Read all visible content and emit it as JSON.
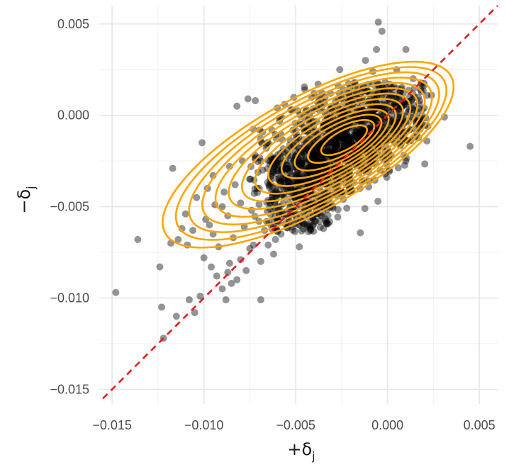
{
  "chart_data": {
    "type": "scatter",
    "title": "",
    "xlabel": "+δ",
    "xlabel_sub": "j",
    "ylabel": "−δ",
    "ylabel_sub": "j",
    "xlim": [
      -0.0157,
      0.006
    ],
    "ylim": [
      -0.0158,
      0.006
    ],
    "x_ticks": [
      -0.015,
      -0.01,
      -0.005,
      0.0,
      0.005
    ],
    "y_ticks": [
      0.005,
      0.0,
      -0.005,
      -0.01,
      -0.015
    ],
    "x_tick_labels": [
      "−0.015",
      "−0.010",
      "−0.005",
      "0.000",
      "0.005"
    ],
    "y_tick_labels": [
      "0.005",
      "0.000",
      "−0.005",
      "−0.010",
      "−0.015"
    ],
    "grid": true,
    "point_color": "#000000",
    "point_opacity": 0.42,
    "contour_color": "#FFA500",
    "reference_line": {
      "style": "dashed",
      "color": "#E41A1C",
      "slope": 1,
      "intercept": 0
    },
    "density_center": [
      -0.0022,
      -0.0013
    ],
    "contour_levels": 13,
    "points": [
      [
        -0.0148,
        -0.0097
      ],
      [
        -0.0136,
        -0.0068
      ],
      [
        -0.0123,
        -0.0105
      ],
      [
        -0.0122,
        -0.0122
      ],
      [
        -0.0115,
        -0.011
      ],
      [
        -0.0117,
        -0.0029
      ],
      [
        -0.0124,
        -0.0083
      ],
      [
        -0.0118,
        -0.007
      ],
      [
        -0.0112,
        -0.0062
      ],
      [
        -0.0105,
        -0.0108
      ],
      [
        -0.0108,
        -0.0101
      ],
      [
        -0.0102,
        -0.0099
      ],
      [
        -0.01,
        -0.0078
      ],
      [
        -0.011,
        -0.0054
      ],
      [
        -0.0104,
        -0.0045
      ],
      [
        -0.0098,
        -0.004
      ],
      [
        -0.0101,
        -0.0015
      ],
      [
        -0.0095,
        -0.0033
      ],
      [
        -0.0093,
        -0.0088
      ],
      [
        -0.009,
        -0.0095
      ],
      [
        -0.0088,
        -0.0101
      ],
      [
        -0.0085,
        -0.0092
      ],
      [
        -0.0082,
        -0.009
      ],
      [
        -0.0086,
        -0.0081
      ],
      [
        -0.0069,
        -0.0101
      ],
      [
        -0.008,
        -0.0048
      ],
      [
        -0.0087,
        -0.0055
      ],
      [
        -0.0082,
        0.0005
      ],
      [
        -0.0076,
        0.0009
      ],
      [
        -0.0072,
        0.0008
      ],
      [
        -0.0079,
        -0.0025
      ],
      [
        -0.0075,
        -0.0073
      ],
      [
        -0.0062,
        -0.0076
      ],
      [
        -0.0058,
        -0.0065
      ],
      [
        -0.005,
        -0.0058
      ],
      [
        -0.0045,
        0.0014
      ],
      [
        -0.004,
        0.0012
      ],
      [
        -0.0034,
        0.001
      ],
      [
        -0.0026,
        0.0025
      ],
      [
        -0.0005,
        0.0051
      ],
      [
        -0.0003,
        0.0046
      ],
      [
        -0.0006,
        0.0036
      ],
      [
        0.001,
        0.0036
      ],
      [
        0.0014,
        0.002
      ],
      [
        0.0018,
        0.0014
      ],
      [
        0.0024,
        0.0011
      ],
      [
        0.0031,
        -0.0001
      ],
      [
        0.0045,
        -0.0017
      ],
      [
        0.0022,
        -0.0006
      ],
      [
        0.0015,
        -0.0012
      ],
      [
        0.001,
        -0.0025
      ],
      [
        -0.0012,
        0.003
      ],
      [
        -0.0018,
        0.0018
      ],
      [
        -0.0008,
        0.0024
      ],
      [
        0.0005,
        0.0025
      ],
      [
        -0.0095,
        -0.0065
      ],
      [
        -0.009,
        -0.005
      ],
      [
        -0.0097,
        -0.006
      ],
      [
        -0.0092,
        -0.0072
      ],
      [
        -0.0084,
        -0.0067
      ],
      [
        -0.0078,
        -0.0061
      ],
      [
        -0.0074,
        -0.0052
      ],
      [
        -0.0071,
        -0.004
      ],
      [
        -0.0068,
        -0.003
      ],
      [
        -0.0066,
        -0.0018
      ],
      [
        -0.0063,
        -0.0008
      ],
      [
        -0.006,
        0.0004
      ],
      [
        -0.0056,
        0.0006
      ],
      [
        -0.0052,
        0.0003
      ],
      [
        -0.0048,
        -0.0072
      ],
      [
        -0.0042,
        -0.0062
      ],
      [
        -0.0036,
        -0.0055
      ],
      [
        -0.003,
        -0.005
      ],
      [
        -0.0024,
        -0.0046
      ],
      [
        -0.002,
        -0.0042
      ],
      [
        -0.0015,
        -0.004
      ],
      [
        -0.001,
        -0.0036
      ],
      [
        -0.0004,
        -0.003
      ],
      [
        0.0002,
        -0.0022
      ],
      [
        0.0008,
        -0.0015
      ],
      [
        0.0012,
        -0.0008
      ],
      [
        0.0016,
        -0.0003
      ],
      [
        0.002,
        0.0004
      ],
      [
        0.0012,
        0.001
      ],
      [
        0.0007,
        0.0013
      ],
      [
        -0.0001,
        0.0016
      ],
      [
        -0.0008,
        0.0017
      ],
      [
        -0.0016,
        0.0015
      ],
      [
        -0.0024,
        0.0014
      ],
      [
        -0.0031,
        0.0012
      ],
      [
        -0.0038,
        0.0007
      ],
      [
        -0.0044,
        0.0003
      ],
      [
        -0.007,
        -0.0058
      ],
      [
        -0.0067,
        -0.0063
      ],
      [
        -0.0064,
        -0.0048
      ],
      [
        -0.0058,
        -0.0056
      ],
      [
        -0.0053,
        -0.005
      ],
      [
        -0.0047,
        -0.0044
      ],
      [
        -0.0041,
        -0.0039
      ],
      [
        -0.0035,
        -0.0034
      ],
      [
        -0.0029,
        -0.0028
      ],
      [
        -0.0023,
        -0.0023
      ],
      [
        -0.0017,
        -0.0019
      ],
      [
        -0.0011,
        -0.0015
      ],
      [
        -0.0005,
        -0.001
      ],
      [
        0.0001,
        -0.0006
      ],
      [
        -0.0072,
        -0.0022
      ],
      [
        -0.0075,
        -0.0035
      ],
      [
        -0.0086,
        -0.0028
      ],
      [
        -0.0083,
        -0.0038
      ],
      [
        -0.0089,
        -0.0042
      ],
      [
        -0.0094,
        -0.0049
      ],
      [
        -0.0099,
        -0.0057
      ],
      [
        -0.0106,
        -0.0063
      ],
      [
        -0.0109,
        -0.0071
      ],
      [
        -0.0114,
        -0.0068
      ],
      [
        -0.0096,
        -0.0083
      ],
      [
        -0.0087,
        -0.0086
      ],
      [
        -0.008,
        -0.0079
      ],
      [
        -0.0077,
        -0.0085
      ],
      [
        -0.0073,
        -0.0071
      ],
      [
        -0.0069,
        -0.008
      ],
      [
        -0.0065,
        -0.0071
      ],
      [
        -0.0061,
        -0.0068
      ]
    ]
  }
}
